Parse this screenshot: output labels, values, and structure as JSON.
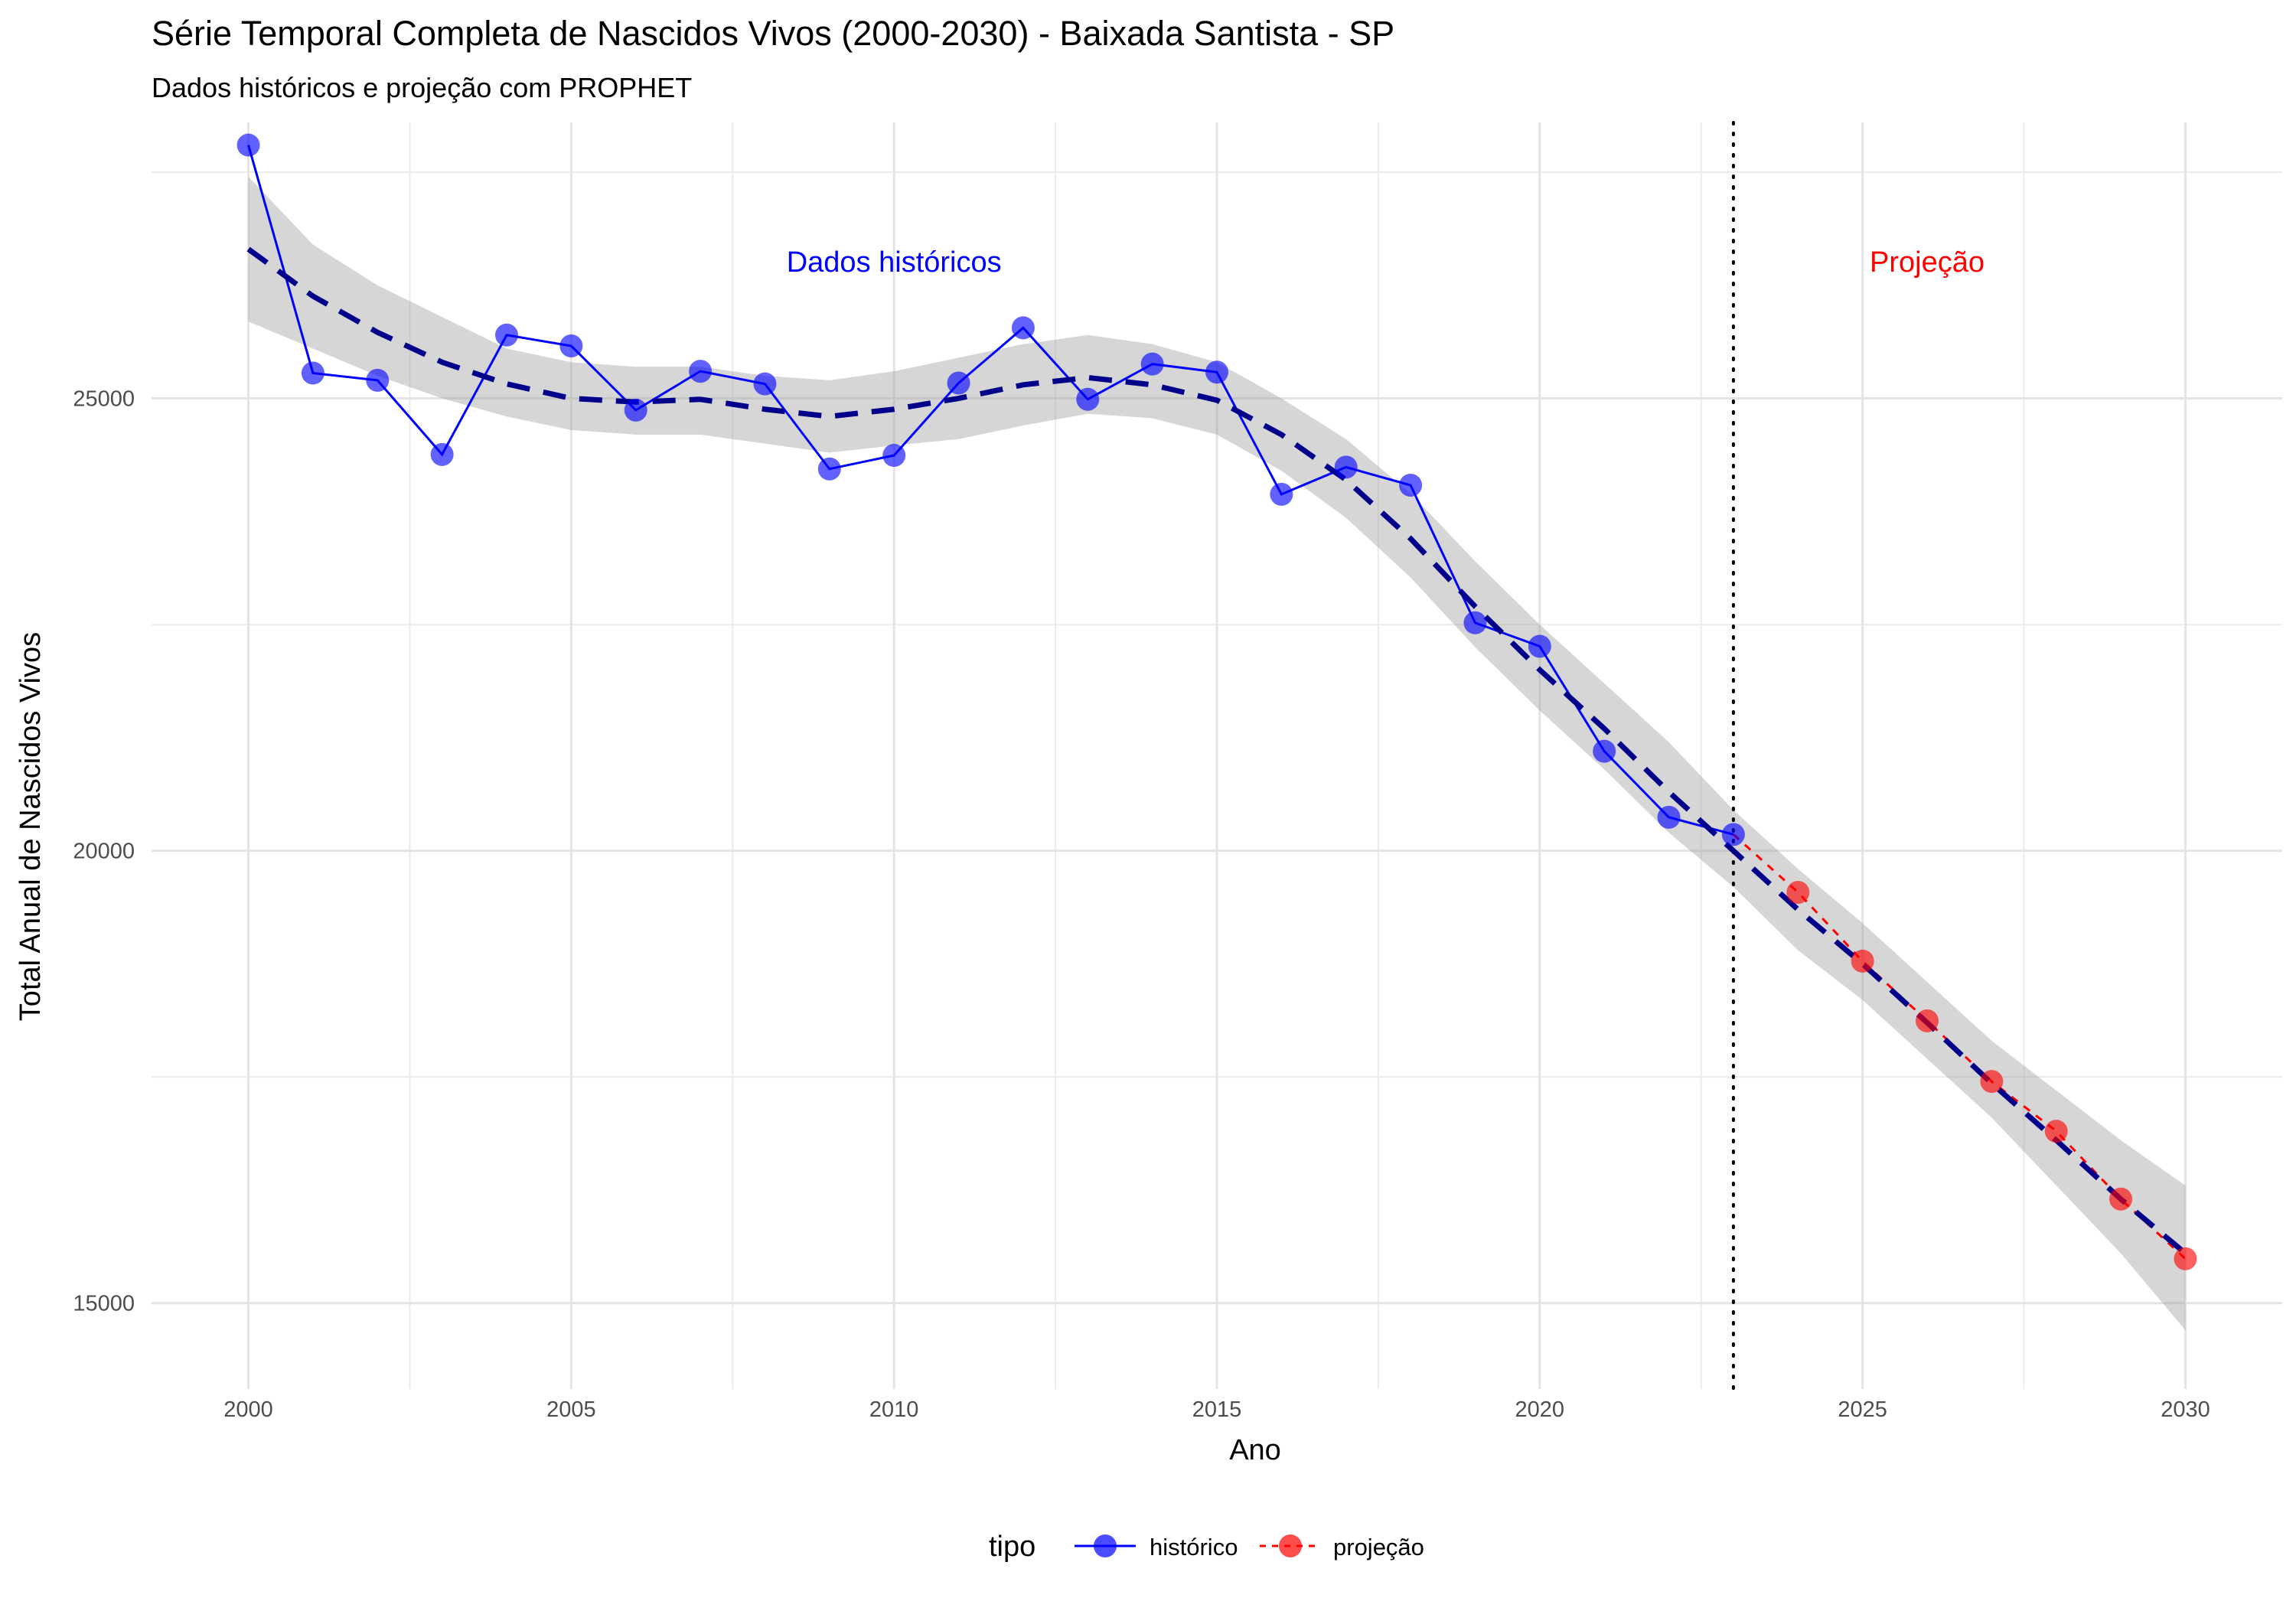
{
  "chart_data": {
    "type": "line",
    "title": "Série Temporal Completa de Nascidos Vivos (2000-2030) -  Baixada Santista - SP",
    "subtitle": "Dados históricos e projeção com PROPHET",
    "xlabel": "Ano",
    "ylabel": "Total Anual de Nascidos Vivos",
    "xlim": [
      1998.5,
      2031.5
    ],
    "ylim": [
      14050,
      28050
    ],
    "x_ticks": [
      2000,
      2005,
      2010,
      2015,
      2020,
      2025,
      2030
    ],
    "x_tick_labels": [
      "2000",
      "2005",
      "2010",
      "2015",
      "2020",
      "2025",
      "2030"
    ],
    "y_ticks": [
      15000,
      20000,
      25000
    ],
    "y_tick_labels": [
      "15000",
      "20000",
      "25000"
    ],
    "grid": true,
    "legend": {
      "title": "tipo",
      "position": "bottom",
      "entries": [
        "histórico",
        "projeção"
      ]
    },
    "series": [
      {
        "name": "histórico",
        "color": "#0000ff",
        "x": [
          2000,
          2001,
          2002,
          2003,
          2004,
          2005,
          2006,
          2007,
          2008,
          2009,
          2010,
          2011,
          2012,
          2013,
          2014,
          2015,
          2016,
          2017,
          2018,
          2019,
          2020,
          2021,
          2022,
          2023
        ],
        "values": [
          27800,
          25280,
          25200,
          24380,
          25700,
          25580,
          24870,
          25300,
          25160,
          24220,
          24370,
          25170,
          25780,
          24990,
          25380,
          25290,
          23940,
          24240,
          24040,
          22520,
          22260,
          21100,
          20370,
          20180
        ]
      },
      {
        "name": "projeção",
        "color": "#ff0000",
        "x": [
          2023,
          2024,
          2025,
          2026,
          2027,
          2028,
          2029,
          2030
        ],
        "values": [
          20180,
          19540,
          18780,
          18120,
          17450,
          16900,
          16150,
          15490
        ]
      }
    ],
    "smooth_trend": {
      "color": "#00008b",
      "style": "dashed",
      "x": [
        2000,
        2001,
        2002,
        2003,
        2004,
        2005,
        2006,
        2007,
        2008,
        2009,
        2010,
        2011,
        2012,
        2013,
        2014,
        2015,
        2016,
        2017,
        2018,
        2019,
        2020,
        2021,
        2022,
        2023,
        2024,
        2025,
        2026,
        2027,
        2028,
        2029,
        2030
      ],
      "values": [
        26650,
        26130,
        25730,
        25400,
        25160,
        25000,
        24960,
        24990,
        24880,
        24800,
        24880,
        25000,
        25150,
        25230,
        25150,
        24980,
        24600,
        24100,
        23450,
        22700,
        22000,
        21350,
        20650,
        20000,
        19350,
        18750,
        18100,
        17430,
        16800,
        16150,
        15550
      ],
      "lower": [
        25850,
        25550,
        25250,
        25000,
        24800,
        24650,
        24600,
        24600,
        24500,
        24400,
        24480,
        24550,
        24700,
        24830,
        24780,
        24600,
        24200,
        23680,
        23020,
        22250,
        21550,
        20900,
        20200,
        19600,
        18900,
        18350,
        17700,
        17050,
        16300,
        15550,
        14700
      ],
      "upper": [
        27450,
        26700,
        26250,
        25900,
        25550,
        25400,
        25350,
        25350,
        25250,
        25200,
        25300,
        25450,
        25600,
        25700,
        25600,
        25400,
        25000,
        24550,
        23950,
        23200,
        22500,
        21850,
        21200,
        20450,
        19800,
        19200,
        18550,
        17900,
        17350,
        16800,
        16300
      ]
    },
    "vertical_line": {
      "x": 2023,
      "style": "dotted",
      "color": "#000000"
    },
    "annotations": [
      {
        "text": "Dados históricos",
        "x": 2010,
        "y": 26400,
        "color": "#0000ff"
      },
      {
        "text": "Projeção",
        "x": 2026,
        "y": 26400,
        "color": "#ff0000"
      }
    ]
  }
}
